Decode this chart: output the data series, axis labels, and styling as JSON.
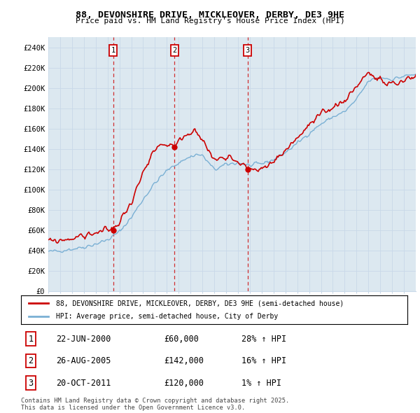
{
  "title": "88, DEVONSHIRE DRIVE, MICKLEOVER, DERBY, DE3 9HE",
  "subtitle": "Price paid vs. HM Land Registry's House Price Index (HPI)",
  "ylim": [
    0,
    250000
  ],
  "yticks": [
    0,
    20000,
    40000,
    60000,
    80000,
    100000,
    120000,
    140000,
    160000,
    180000,
    200000,
    220000,
    240000
  ],
  "ytick_labels": [
    "£0",
    "£20K",
    "£40K",
    "£60K",
    "£80K",
    "£100K",
    "£120K",
    "£140K",
    "£160K",
    "£180K",
    "£200K",
    "£220K",
    "£240K"
  ],
  "sale_dates": [
    2000.47,
    2005.65,
    2011.8
  ],
  "sale_prices": [
    60000,
    142000,
    120000
  ],
  "sale_labels": [
    "1",
    "2",
    "3"
  ],
  "sale_pct": [
    "28% ↑ HPI",
    "16% ↑ HPI",
    "1% ↑ HPI"
  ],
  "sale_date_labels": [
    "22-JUN-2000",
    "26-AUG-2005",
    "20-OCT-2011"
  ],
  "sale_price_labels": [
    "£60,000",
    "£142,000",
    "£120,000"
  ],
  "red_line_color": "#cc0000",
  "blue_line_color": "#7ab0d4",
  "vline_color": "#cc0000",
  "grid_color": "#c8d8e8",
  "bg_color": "#ffffff",
  "chart_bg_color": "#dce8f0",
  "legend_label_red": "88, DEVONSHIRE DRIVE, MICKLEOVER, DERBY, DE3 9HE (semi-detached house)",
  "legend_label_blue": "HPI: Average price, semi-detached house, City of Derby",
  "footer": "Contains HM Land Registry data © Crown copyright and database right 2025.\nThis data is licensed under the Open Government Licence v3.0.",
  "xmin": 1995,
  "xmax": 2026
}
